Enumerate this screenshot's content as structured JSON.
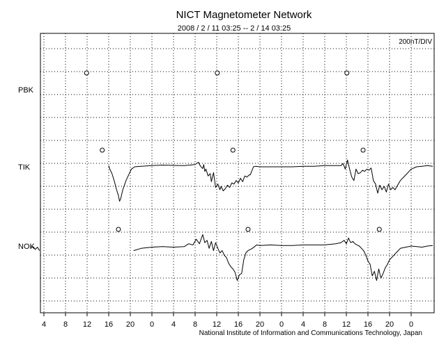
{
  "chart_data": {
    "type": "line",
    "title": "NICT Magnetometer Network",
    "subtitle": "2008 / 2 / 11   03:25 --  2 / 14   03:25",
    "scale_label": "200nT/DIV",
    "footer": "National Institute of Information and Communications Technology, Japan",
    "xlabel": "",
    "ylabel": "",
    "x_unit": "hour of day (UT)",
    "x_ticks": [
      "4",
      "8",
      "12",
      "16",
      "20",
      "0",
      "4",
      "8",
      "12",
      "16",
      "20",
      "0",
      "4",
      "8",
      "12",
      "16",
      "20",
      "0"
    ],
    "stations": [
      {
        "name": "PBK",
        "marker_hours": [
          11.9,
          36.1,
          60.1
        ]
      },
      {
        "name": "TIK",
        "marker_hours": [
          14.8,
          39.0,
          63.1
        ]
      },
      {
        "name": "NOK",
        "marker_hours": [
          17.8,
          41.8,
          66.1
        ]
      }
    ],
    "y_scale": "200 nT per division",
    "grid": true,
    "series": [
      {
        "name": "TIK",
        "x": [
          16.0,
          16.2,
          16.6,
          17.0,
          17.4,
          17.8,
          18.0,
          18.2,
          18.6,
          19.2,
          19.8,
          20.2,
          20.8,
          22,
          24,
          26,
          28,
          30,
          32,
          32.6,
          33.0,
          33.4,
          33.6,
          33.8,
          34.0,
          34.4,
          34.8,
          35.0,
          35.4,
          35.8,
          36.2,
          36.6,
          36.8,
          37.2,
          37.6,
          38.0,
          38.4,
          38.8,
          39.2,
          39.6,
          40.0,
          40.4,
          40.8,
          41.2,
          41.6,
          42.0,
          42.2,
          42.8,
          43.2,
          44,
          46,
          48,
          50,
          52,
          54,
          56,
          58,
          59,
          59.4,
          59.8,
          60.2,
          60.6,
          61.0,
          61.4,
          61.8,
          62.2,
          62.6,
          63.0,
          63.4,
          63.8,
          64.2,
          64.6,
          65.0,
          65.4,
          65.8,
          66.2,
          66.6,
          67.0,
          67.4,
          67.8,
          68.2,
          68.6,
          69,
          70,
          71,
          72,
          73,
          74,
          75,
          76
        ],
        "y": [
          10,
          -20,
          -60,
          -120,
          -190,
          -250,
          -300,
          -280,
          -200,
          -120,
          -60,
          -20,
          0,
          5,
          10,
          15,
          12,
          10,
          20,
          40,
          5,
          -15,
          20,
          -40,
          -20,
          -80,
          -60,
          -130,
          -50,
          -180,
          -150,
          -200,
          -170,
          -210,
          -190,
          -160,
          -180,
          -140,
          -150,
          -120,
          -140,
          -100,
          -130,
          -80,
          -90,
          -70,
          -70,
          0,
          5,
          0,
          0,
          0,
          0,
          5,
          5,
          10,
          10,
          10,
          30,
          -20,
          60,
          -20,
          -90,
          -120,
          -20,
          -60,
          -50,
          -30,
          -40,
          -20,
          -30,
          -10,
          -120,
          -150,
          -230,
          -160,
          -200,
          -170,
          -220,
          -150,
          -200,
          -180,
          -200,
          -120,
          -70,
          -20,
          0,
          5,
          10,
          5
        ]
      },
      {
        "name": "NOK",
        "x": [
          1.5,
          2.0,
          2.4,
          2.8,
          3.2,
          20.6,
          22,
          24,
          26,
          28,
          30,
          30.8,
          31.6,
          32.2,
          32.8,
          33.4,
          33.8,
          34.2,
          34.6,
          35.0,
          35.4,
          35.8,
          36.2,
          36.6,
          37.0,
          37.4,
          37.8,
          38.2,
          38.6,
          39.0,
          39.4,
          39.8,
          40.2,
          40.6,
          41.0,
          41.4,
          41.8,
          42.2,
          42.6,
          43.0,
          43.4,
          44,
          46,
          48,
          50,
          52,
          54,
          56,
          58,
          59,
          59.6,
          60.0,
          60.4,
          60.8,
          61.2,
          61.6,
          62.0,
          62.4,
          62.8,
          63.2,
          63.6,
          64.0,
          64.4,
          64.8,
          65.2,
          65.6,
          66.0,
          66.4,
          66.8,
          67.2,
          67.6,
          68.0,
          68.4,
          68.8,
          69.2,
          69.6,
          70,
          71,
          72,
          73,
          74,
          75,
          76
        ],
        "y": [
          -20,
          -5,
          -30,
          -10,
          -40,
          -40,
          -20,
          -10,
          -5,
          -10,
          -5,
          20,
          10,
          60,
          20,
          100,
          30,
          50,
          -20,
          40,
          -40,
          30,
          -20,
          -60,
          -40,
          -80,
          -100,
          -150,
          -180,
          -200,
          -230,
          -300,
          -250,
          -240,
          -120,
          -60,
          -40,
          -30,
          -20,
          -5,
          10,
          5,
          10,
          5,
          5,
          10,
          10,
          10,
          20,
          30,
          50,
          20,
          70,
          30,
          40,
          20,
          10,
          0,
          -20,
          -40,
          -80,
          -130,
          -160,
          -260,
          -220,
          -300,
          -200,
          -280,
          -240,
          -190,
          -160,
          -120,
          -100,
          -80,
          -60,
          -40,
          -20,
          -10,
          0,
          -5,
          -10,
          0,
          5
        ]
      }
    ]
  }
}
